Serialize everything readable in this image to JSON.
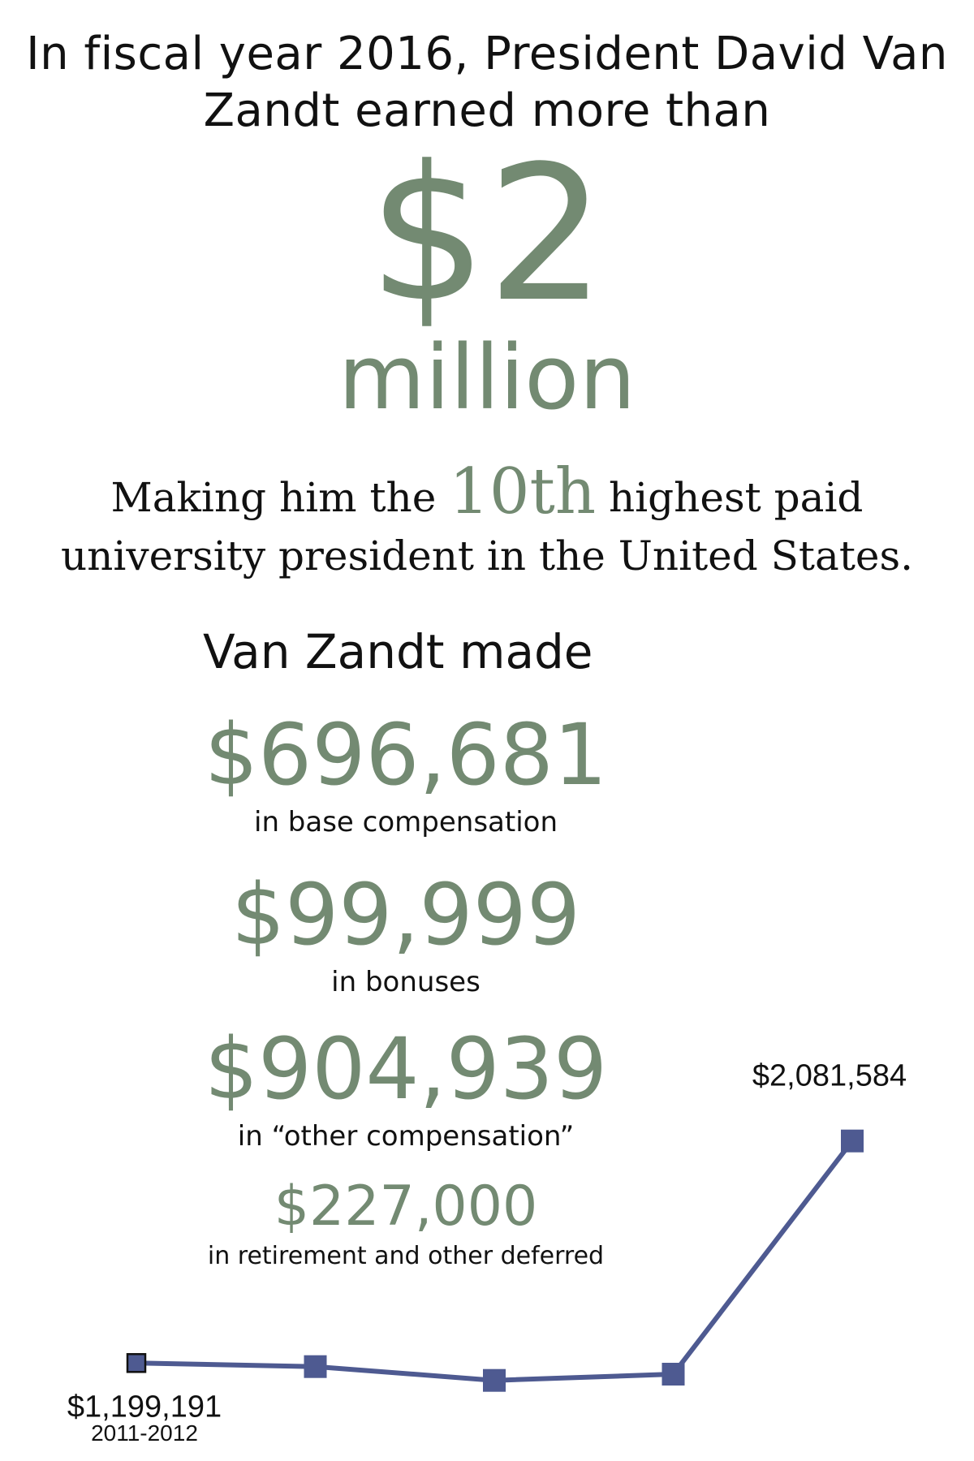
{
  "headline": {
    "line1": "In fiscal year 2016, President David Van",
    "line2": "Zandt earned more than"
  },
  "big_figure": {
    "amount": "$2",
    "unit": "million"
  },
  "rank": {
    "prefix": "Making him the",
    "ordinal": "10th",
    "suffix_line1": "highest paid",
    "line2": "university president in the United States."
  },
  "breakdown": {
    "intro": "Van Zandt made",
    "items": [
      {
        "amount": "$696,681",
        "caption": "in base compensation"
      },
      {
        "amount": "$99,999",
        "caption": "in bonuses"
      },
      {
        "amount": "$904,939",
        "caption": "in “other compensation”"
      },
      {
        "amount": "$227,000",
        "caption": "in retirement and other deferred"
      }
    ]
  },
  "colors": {
    "accent_green": "#738a72",
    "line_blue": "#4e5a91",
    "text": "#111111"
  },
  "chart_data": {
    "type": "line",
    "x": [
      "2011-2012",
      "",
      "",
      "",
      ""
    ],
    "series": [
      {
        "values": [
          1199191,
          1185000,
          1130000,
          1155000,
          2081584
        ]
      }
    ],
    "point_labels": [
      "$1,199,191",
      "",
      "",
      "",
      "$2,081,584"
    ],
    "ylim": [
      1100000,
      2100000
    ],
    "grid": false
  }
}
